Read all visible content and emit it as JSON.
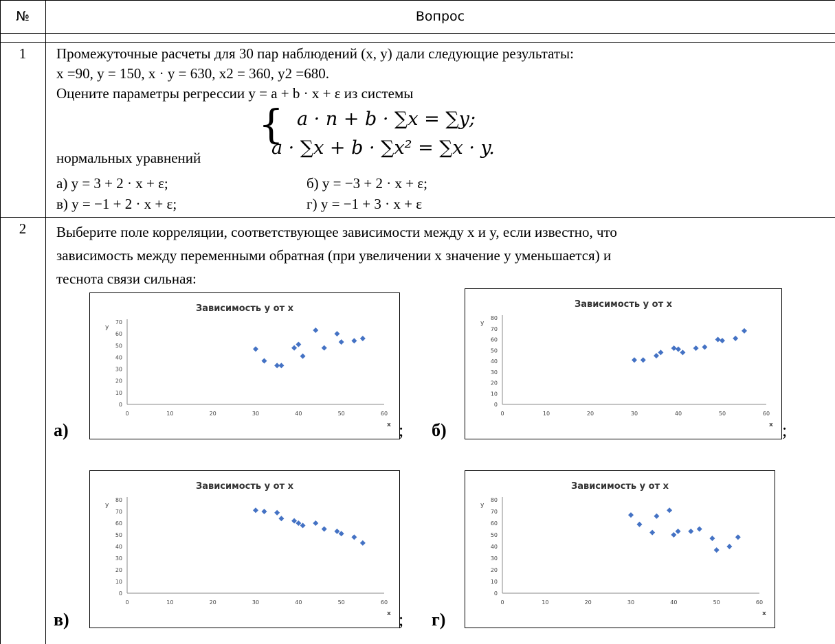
{
  "table": {
    "header": {
      "num": "№",
      "question": "Вопрос"
    }
  },
  "q1": {
    "num": "1",
    "lines": [
      "Промежуточные расчеты для 30 пар наблюдений (x, y) дали  следующие результаты:",
      "x =90, y = 150, x · y = 630, x2 = 360, y2 =680.",
      "Оцените параметры регрессии y = a + b · x + ε из системы"
    ],
    "system_eq1": "a · n + b · ∑x = ∑y;",
    "system_eq2": "a · ∑x + b · ∑x² = ∑x · y.",
    "normal_label": "нормальных уравнений",
    "options": {
      "a": "а) y = 3 + 2 · x + ε;",
      "b": "б) y = −3 + 2 · x + ε;",
      "v": "в) y = −1 + 2 · x + ε;",
      "g": "г) y = −1 + 3 · x + ε"
    }
  },
  "q2": {
    "num": "2",
    "lines": [
      "Выберите поле корреляции, соответствующее зависимости  между x и y, если известно, что",
      "зависимость между переменными обратная (при увеличении x значение y уменьшается) и",
      "теснота связи сильная:"
    ],
    "letters": [
      "а)",
      "б)",
      "в)",
      "г)"
    ],
    "semicolon": ";"
  },
  "chart_data": [
    {
      "type": "scatter",
      "title": "Зависимость y от x",
      "xlabel": "x",
      "ylabel": "y",
      "xlim": [
        0,
        60
      ],
      "ylim": [
        0,
        70
      ],
      "xticks": [
        0,
        10,
        20,
        30,
        40,
        50,
        60
      ],
      "yticks": [
        0,
        10,
        20,
        30,
        40,
        50,
        60,
        70
      ],
      "points": [
        [
          30,
          47
        ],
        [
          32,
          37
        ],
        [
          35,
          33
        ],
        [
          36,
          33
        ],
        [
          39,
          48
        ],
        [
          40,
          51
        ],
        [
          41,
          41
        ],
        [
          44,
          63
        ],
        [
          46,
          48
        ],
        [
          49,
          60
        ],
        [
          50,
          53
        ],
        [
          53,
          54
        ],
        [
          55,
          56
        ]
      ],
      "color": "#4472C4"
    },
    {
      "type": "scatter",
      "title": "Зависимость y от x",
      "xlabel": "x",
      "ylabel": "y",
      "xlim": [
        0,
        60
      ],
      "ylim": [
        0,
        80
      ],
      "xticks": [
        0,
        10,
        20,
        30,
        40,
        50,
        60
      ],
      "yticks": [
        0,
        10,
        20,
        30,
        40,
        50,
        60,
        70,
        80
      ],
      "points": [
        [
          30,
          41
        ],
        [
          32,
          41
        ],
        [
          35,
          45
        ],
        [
          36,
          48
        ],
        [
          39,
          52
        ],
        [
          40,
          51
        ],
        [
          41,
          48
        ],
        [
          44,
          52
        ],
        [
          46,
          53
        ],
        [
          49,
          60
        ],
        [
          50,
          59
        ],
        [
          53,
          61
        ],
        [
          55,
          68
        ]
      ],
      "color": "#4472C4"
    },
    {
      "type": "scatter",
      "title": "Зависимость y от x",
      "xlabel": "x",
      "ylabel": "y",
      "xlim": [
        0,
        60
      ],
      "ylim": [
        0,
        80
      ],
      "xticks": [
        0,
        10,
        20,
        30,
        40,
        50,
        60
      ],
      "yticks": [
        0,
        10,
        20,
        30,
        40,
        50,
        60,
        70,
        80
      ],
      "points": [
        [
          30,
          71
        ],
        [
          32,
          70
        ],
        [
          35,
          69
        ],
        [
          36,
          64
        ],
        [
          39,
          62
        ],
        [
          40,
          60
        ],
        [
          41,
          58
        ],
        [
          44,
          60
        ],
        [
          46,
          55
        ],
        [
          49,
          53
        ],
        [
          50,
          51
        ],
        [
          53,
          48
        ],
        [
          55,
          43
        ]
      ],
      "color": "#4472C4"
    },
    {
      "type": "scatter",
      "title": "Зависимость y от x",
      "xlabel": "x",
      "ylabel": "y",
      "xlim": [
        0,
        60
      ],
      "ylim": [
        0,
        80
      ],
      "xticks": [
        0,
        10,
        20,
        30,
        40,
        50,
        60
      ],
      "yticks": [
        0,
        10,
        20,
        30,
        40,
        50,
        60,
        70,
        80
      ],
      "points": [
        [
          30,
          67
        ],
        [
          32,
          59
        ],
        [
          35,
          52
        ],
        [
          36,
          66
        ],
        [
          39,
          71
        ],
        [
          40,
          50
        ],
        [
          41,
          53
        ],
        [
          44,
          53
        ],
        [
          46,
          55
        ],
        [
          49,
          47
        ],
        [
          50,
          37
        ],
        [
          53,
          40
        ],
        [
          55,
          48
        ]
      ],
      "color": "#4472C4"
    }
  ]
}
